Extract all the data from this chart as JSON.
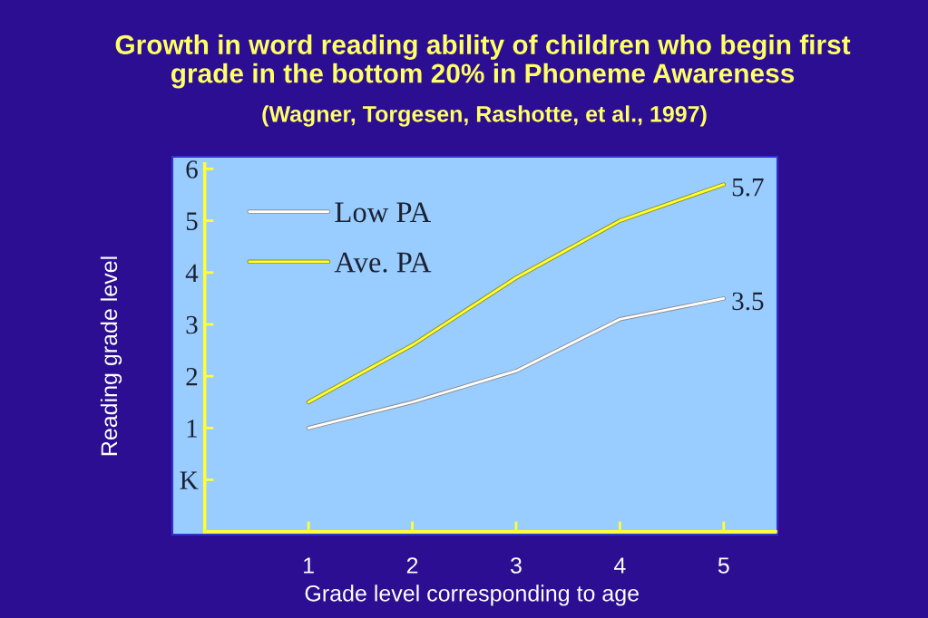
{
  "chart_data": {
    "type": "line",
    "title": "Growth in word reading ability of children who begin first grade in the bottom 20% in Phoneme Awareness",
    "subtitle": "(Wagner, Torgesen, Rashotte, et al., 1997)",
    "xlabel": "Grade level corresponding to age",
    "ylabel": "Reading grade level",
    "categories": [
      "1",
      "2",
      "3",
      "4",
      "5"
    ],
    "series": [
      {
        "name": "Low PA",
        "color": "#ffffff",
        "values": [
          1.0,
          1.5,
          2.1,
          3.1,
          3.5
        ],
        "value_labels": [
          null,
          null,
          null,
          null,
          "3.5"
        ]
      },
      {
        "name": "Ave. PA",
        "color": "#ffff33",
        "values": [
          1.5,
          2.6,
          3.9,
          5.0,
          5.7
        ],
        "value_labels": [
          null,
          null,
          null,
          null,
          "5.7"
        ]
      }
    ],
    "ylim": [
      -1,
      6.1
    ],
    "yticks": [
      {
        "value": 0,
        "label": "K"
      },
      1,
      2,
      3,
      4,
      5,
      6
    ],
    "grid": false,
    "legend": "top left",
    "line_style": "solid"
  }
}
